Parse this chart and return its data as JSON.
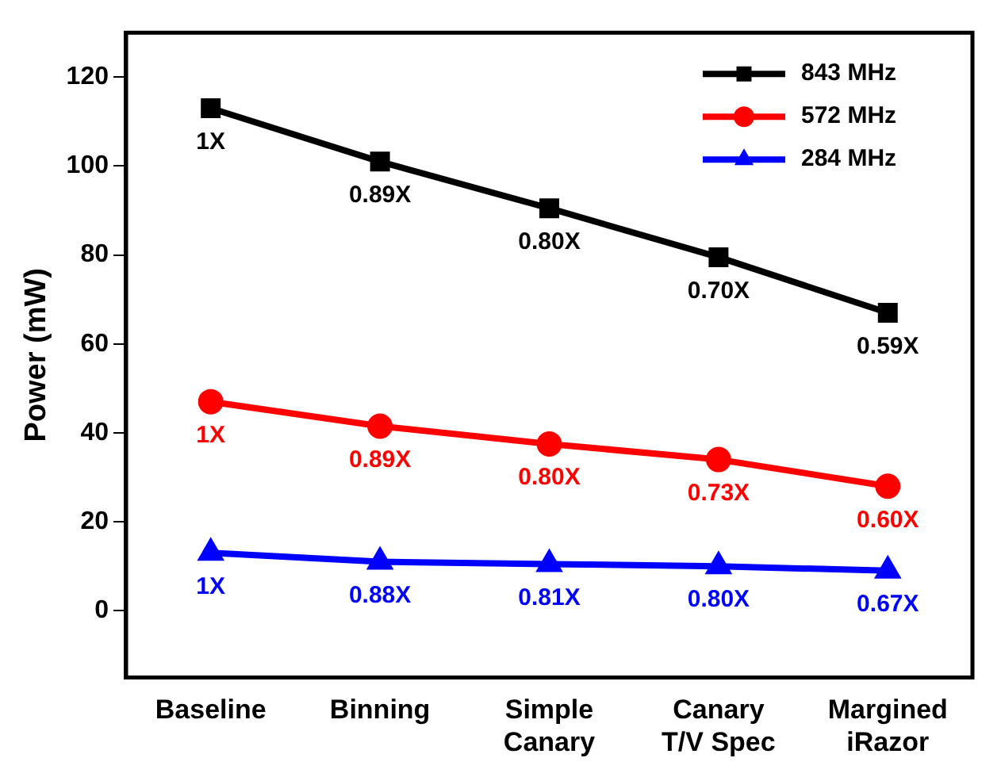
{
  "chart_data": {
    "type": "line",
    "ylabel": "Power (mW)",
    "categories": [
      "Baseline",
      "Binning",
      "Simple\nCanary",
      "Canary\nT/V Spec",
      "Margined\niRazor"
    ],
    "ylim": [
      -15,
      130
    ],
    "yticks": [
      0,
      20,
      40,
      60,
      80,
      100,
      120
    ],
    "grid": false,
    "legend": "top right",
    "line_style": "solid",
    "series": [
      {
        "name": "843 MHz",
        "color": "#000000",
        "marker": "square",
        "values": [
          113,
          101,
          90.5,
          79.5,
          67
        ]
      },
      {
        "name": "572 MHz",
        "color": "#ff0000",
        "marker": "circle",
        "values": [
          47,
          41.5,
          37.5,
          34,
          28
        ]
      },
      {
        "name": "284 MHz",
        "color": "#0000ff",
        "marker": "triangle",
        "values": [
          13,
          11,
          10.5,
          10,
          9
        ]
      }
    ],
    "annotations": [
      {
        "text": "1X",
        "x": "Baseline",
        "y": 113
      },
      {
        "text": "0.89X",
        "x": "Binning",
        "y": 101
      },
      {
        "text": "0.80X",
        "x": "Simple\nCanary",
        "y": 90.5
      },
      {
        "text": "0.70X",
        "x": "Canary\nT/V Spec",
        "y": 79.5
      },
      {
        "text": "0.59X",
        "x": "Margined\niRazor",
        "y": 67
      },
      {
        "text": "1X",
        "x": "Baseline",
        "y": 47
      },
      {
        "text": "0.89X",
        "x": "Binning",
        "y": 41.5
      },
      {
        "text": "0.80X",
        "x": "Simple\nCanary",
        "y": 37.5
      },
      {
        "text": "0.73X",
        "x": "Canary\nT/V Spec",
        "y": 34
      },
      {
        "text": "0.60X",
        "x": "Margined\niRazor",
        "y": 28
      },
      {
        "text": "1X",
        "x": "Baseline",
        "y": 13
      },
      {
        "text": "0.88X",
        "x": "Binning",
        "y": 11
      },
      {
        "text": "0.81X",
        "x": "Simple\nCanary",
        "y": 10.5
      },
      {
        "text": "0.80X",
        "x": "Canary\nT/V Spec",
        "y": 10
      },
      {
        "text": "0.67X",
        "x": "Margined\niRazor",
        "y": 9
      }
    ]
  }
}
